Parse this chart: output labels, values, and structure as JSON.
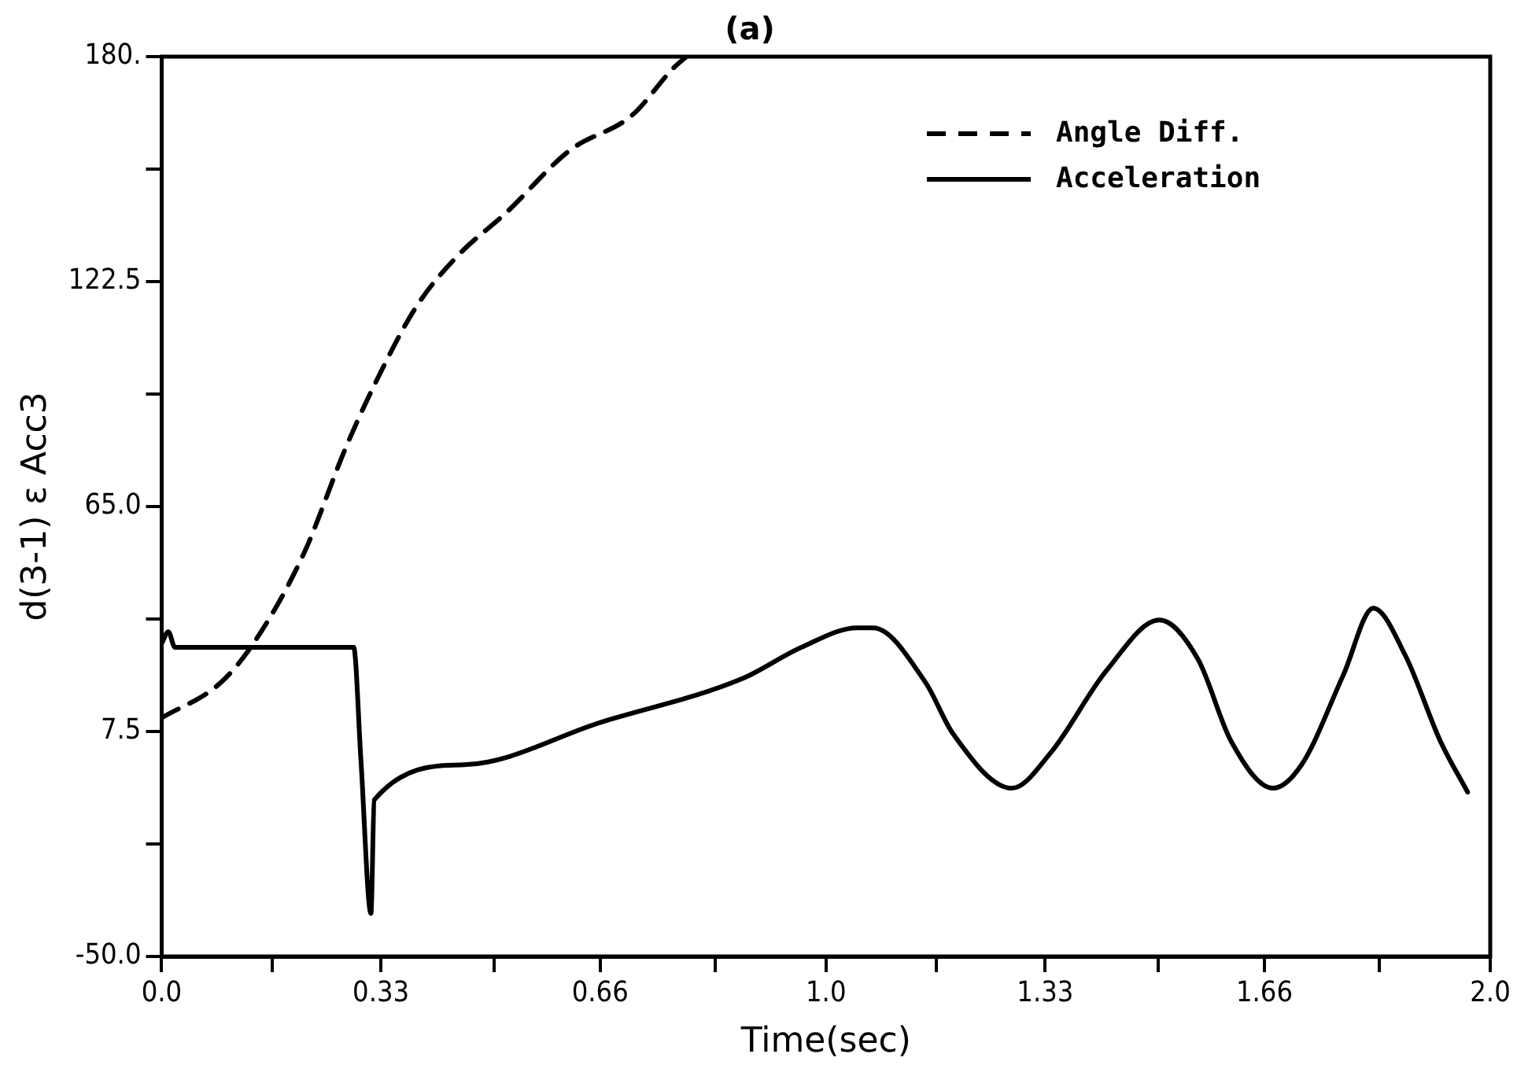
{
  "chart_data": {
    "type": "line",
    "title": "(a)",
    "xlabel": "Time(sec)",
    "ylabel": "d(3-1) ε Acc3",
    "xlim": [
      0,
      2
    ],
    "ylim": [
      -50,
      180
    ],
    "xticks": [
      {
        "value": 0,
        "label": "0.0"
      },
      {
        "value": 0.1667,
        "label": null
      },
      {
        "value": 0.33,
        "label": "0.33"
      },
      {
        "value": 0.5,
        "label": null
      },
      {
        "value": 0.66,
        "label": "0.66"
      },
      {
        "value": 0.8333,
        "label": null
      },
      {
        "value": 1,
        "label": "1.0"
      },
      {
        "value": 1.1667,
        "label": null
      },
      {
        "value": 1.33,
        "label": "1.33"
      },
      {
        "value": 1.5,
        "label": null
      },
      {
        "value": 1.66,
        "label": "1.66"
      },
      {
        "value": 1.8333,
        "label": null
      },
      {
        "value": 2,
        "label": "2.0"
      }
    ],
    "yticks": [
      {
        "value": -50,
        "label": "-50.0"
      },
      {
        "value": -21.25,
        "label": null
      },
      7.5,
      {
        "value": 36.25,
        "label": null
      },
      {
        "value": 65,
        "label": "65.0"
      },
      {
        "value": 93.75,
        "label": null
      },
      122.5,
      {
        "value": 151.25,
        "label": null
      },
      {
        "value": 180,
        "label": "180."
      }
    ],
    "grid": false,
    "legend": "top right",
    "marker": "none",
    "series": [
      {
        "name": "Angle Diff.",
        "color": "#000000",
        "line_style": "dashed",
        "x": [
          0,
          0.089,
          0.142,
          0.214,
          0.277,
          0.32,
          0.383,
          0.445,
          0.518,
          0.614,
          0.708,
          0.77,
          0.79
        ],
        "values": [
          11,
          20,
          31,
          53,
          80,
          96,
          116,
          129,
          140,
          156,
          165,
          177,
          180
        ]
      },
      {
        "name": "Acceleration",
        "color": "#000000",
        "line_style": "solid",
        "x": [
          0,
          0.01,
          0.02,
          0.289,
          0.3,
          0.315,
          0.32,
          0.455,
          0.664,
          0.874,
          0.963,
          1.047,
          1.071,
          1.15,
          1.191,
          1.28,
          1.338,
          1.422,
          1.502,
          1.56,
          1.61,
          1.673,
          1.716,
          1.779,
          1.824,
          1.872,
          1.925,
          1.966
        ],
        "values": [
          30,
          33,
          29,
          29,
          0,
          -39,
          -10,
          -1,
          10,
          21,
          29,
          34,
          34,
          20,
          7,
          -7,
          2,
          23,
          36,
          26,
          5,
          -7,
          -1,
          22,
          39,
          27,
          5,
          -8
        ]
      }
    ]
  }
}
